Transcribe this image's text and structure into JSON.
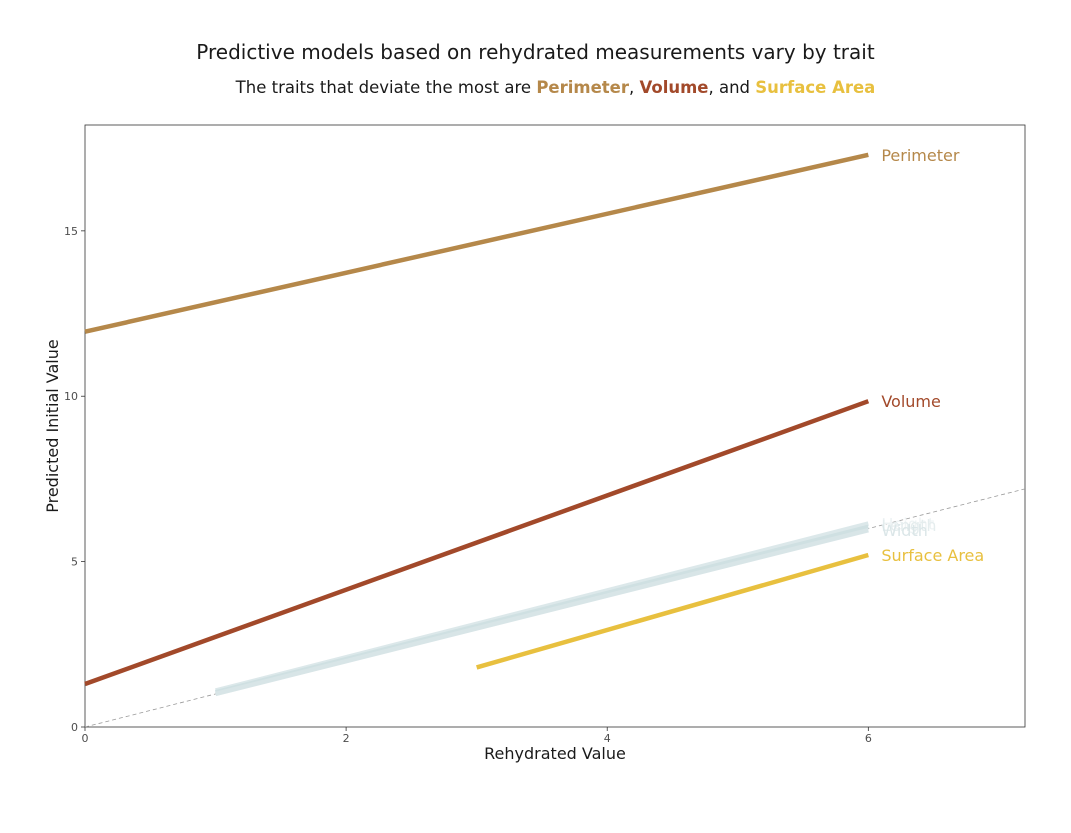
{
  "chart_data": {
    "type": "line",
    "title": "Predictive models based on rehydrated measurements vary by trait",
    "subtitle_prefix": "The traits that deviate the most are ",
    "subtitle_sep1": ", ",
    "subtitle_sep2": ", and ",
    "highlights": [
      "Perimeter",
      "Volume",
      "Surface Area"
    ],
    "xlabel": "Rehydrated Value",
    "ylabel": "Predicted Initial Value",
    "xlim": [
      0,
      7.2
    ],
    "ylim": [
      0,
      18.2
    ],
    "xticks": [
      0,
      2,
      4,
      6
    ],
    "yticks": [
      0,
      5,
      10,
      15
    ],
    "reference_line": {
      "x": [
        0,
        7.2
      ],
      "y": [
        0,
        7.2
      ],
      "style": "dashed"
    },
    "grid": false,
    "legend": "direct labels at line ends",
    "series": [
      {
        "name": "Perimeter",
        "x": [
          0,
          6
        ],
        "y": [
          11.95,
          17.3
        ],
        "color": "#b5884a"
      },
      {
        "name": "Volume",
        "x": [
          0,
          6
        ],
        "y": [
          1.3,
          9.85
        ],
        "color": "#a2492a"
      },
      {
        "name": "Length",
        "x": [
          1,
          6
        ],
        "y": [
          1.1,
          6.15
        ],
        "color": "#dce8ea"
      },
      {
        "name": "Height",
        "x": [
          1,
          6
        ],
        "y": [
          1.05,
          6.05
        ],
        "color": "#cfe0e2"
      },
      {
        "name": "Width",
        "x": [
          1,
          6
        ],
        "y": [
          1.0,
          5.95
        ],
        "color": "#d8e5e7"
      },
      {
        "name": "Surface Area",
        "x": [
          3,
          6
        ],
        "y": [
          1.8,
          5.2
        ],
        "color": "#e8c03f"
      }
    ],
    "faded_labels": [
      {
        "text": "Height",
        "x": 6.1,
        "y": 6.15,
        "color": "#eef3f4"
      },
      {
        "text": "Length",
        "x": 6.1,
        "y": 6.1,
        "color": "#e5edee"
      },
      {
        "text": "Width",
        "x": 6.1,
        "y": 5.95,
        "color": "#dbe6e8"
      }
    ]
  }
}
